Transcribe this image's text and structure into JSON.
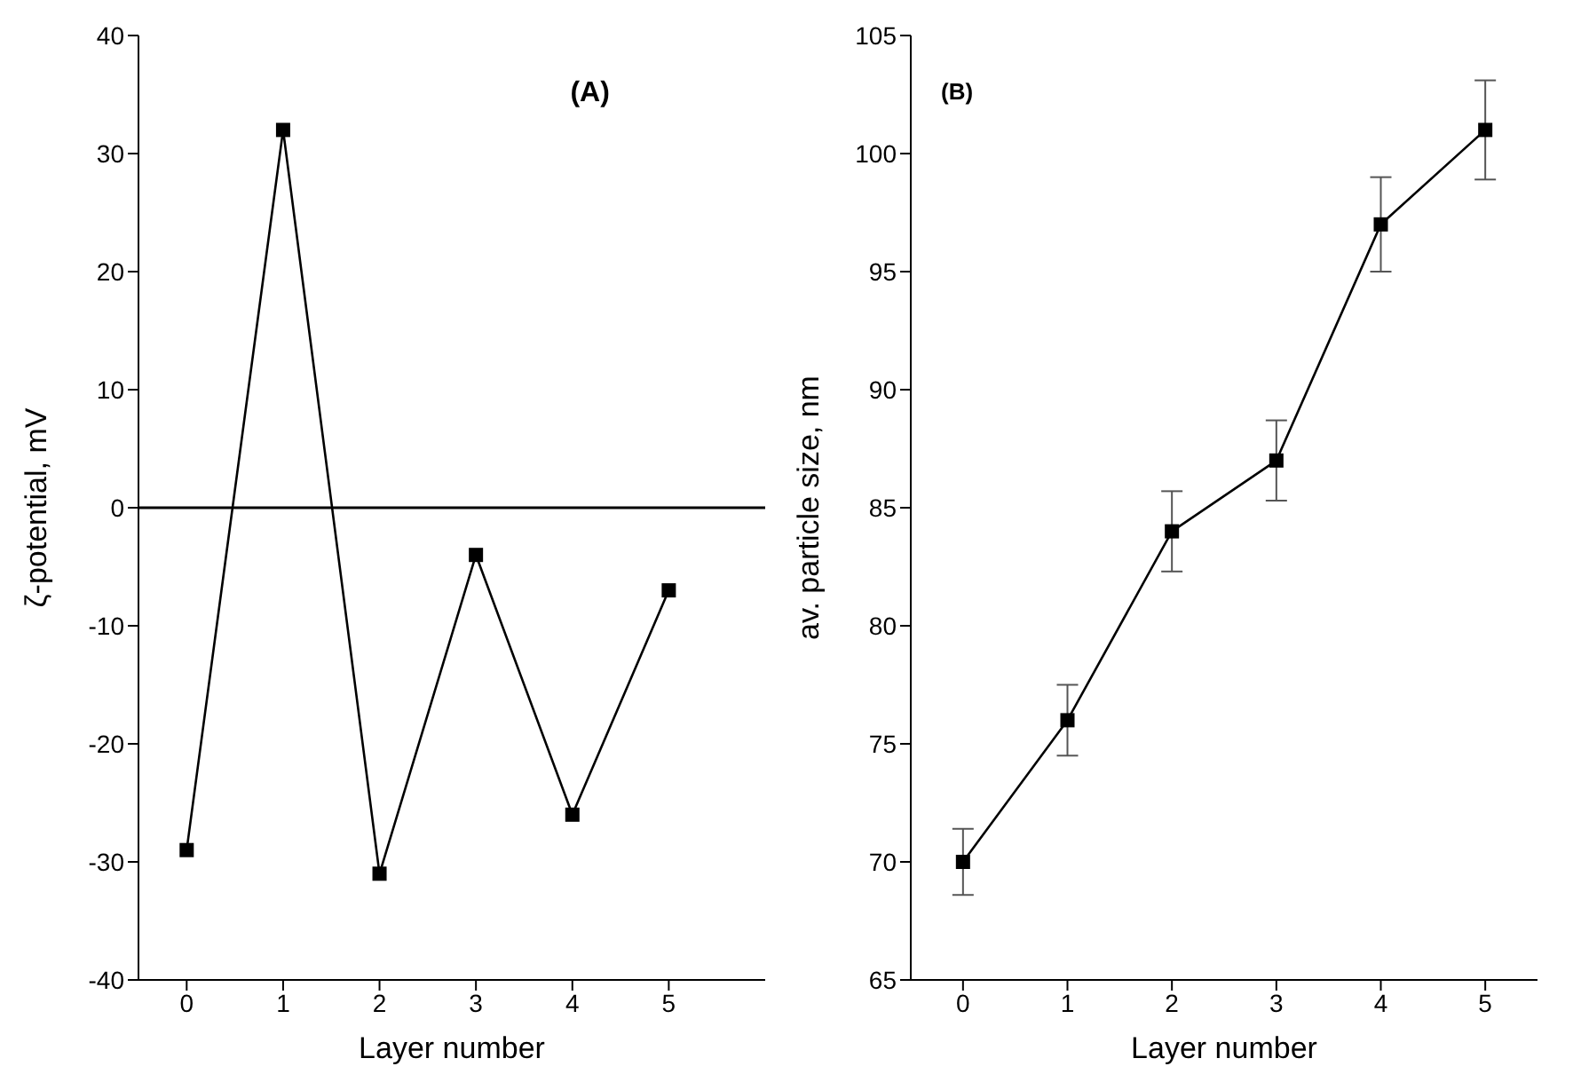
{
  "chart_data": [
    {
      "type": "line",
      "xlabel": "Layer number",
      "ylabel": "ζ-potential, mV",
      "annotations": [
        "(A)"
      ],
      "x": [
        0,
        1,
        2,
        3,
        4,
        5
      ],
      "series": [
        {
          "color": "#000000",
          "values": [
            -29,
            32,
            -31,
            -4,
            -26,
            -7
          ]
        }
      ],
      "xlim": [
        -0.5,
        6
      ],
      "xticks": [
        0,
        1,
        2,
        3,
        4,
        5
      ],
      "ylim": [
        -40,
        40
      ],
      "yticks": [
        -40,
        -30,
        -20,
        -10,
        0,
        10,
        20,
        30,
        40
      ],
      "ref_lines": [
        {
          "axis": "y",
          "value": 0,
          "color": "#000000"
        }
      ],
      "marker": "square",
      "grid": false,
      "legend": false
    },
    {
      "type": "line",
      "xlabel": "Layer number",
      "ylabel": "av. particle size, nm",
      "annotations": [
        "(B)"
      ],
      "x": [
        0,
        1,
        2,
        3,
        4,
        5
      ],
      "series": [
        {
          "color": "#000000",
          "values": [
            70,
            76,
            84,
            87,
            97,
            101
          ],
          "errors": [
            1.4,
            1.5,
            1.7,
            1.7,
            2,
            2.1
          ]
        }
      ],
      "xlim": [
        -0.5,
        5.5
      ],
      "xticks": [
        0,
        1,
        2,
        3,
        4,
        5
      ],
      "ylim": [
        65,
        105
      ],
      "yticks": [
        65,
        70,
        75,
        80,
        85,
        90,
        95,
        100,
        105
      ],
      "marker": "square",
      "grid": false,
      "legend": false
    }
  ]
}
